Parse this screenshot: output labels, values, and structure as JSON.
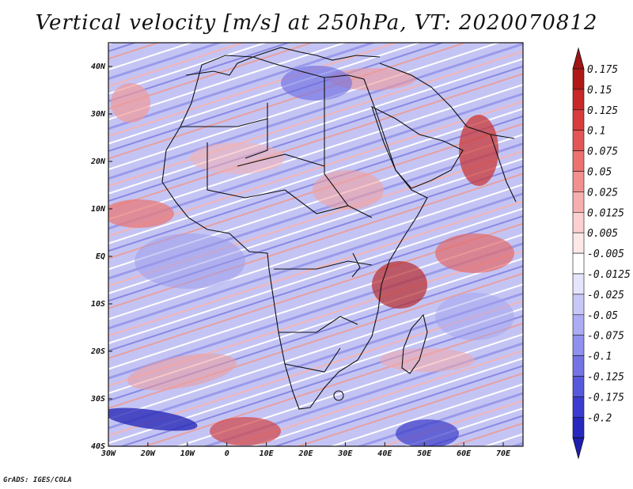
{
  "title": "Vertical velocity [m/s] at 250hPa, VT: 2020070812",
  "credit": "GrADS: IGES/COLA",
  "map": {
    "region": "Africa",
    "lon_range": [
      -30,
      75
    ],
    "lat_range": [
      -40,
      45
    ],
    "lat_ticks": [
      {
        "value": 40,
        "label": "40N"
      },
      {
        "value": 30,
        "label": "30N"
      },
      {
        "value": 20,
        "label": "20N"
      },
      {
        "value": 10,
        "label": "10N"
      },
      {
        "value": 0,
        "label": "EQ"
      },
      {
        "value": -10,
        "label": "10S"
      },
      {
        "value": -20,
        "label": "20S"
      },
      {
        "value": -30,
        "label": "30S"
      },
      {
        "value": -40,
        "label": "40S"
      }
    ],
    "lon_ticks": [
      {
        "value": -30,
        "label": "30W"
      },
      {
        "value": -20,
        "label": "20W"
      },
      {
        "value": -10,
        "label": "10W"
      },
      {
        "value": 0,
        "label": "0"
      },
      {
        "value": 10,
        "label": "10E"
      },
      {
        "value": 20,
        "label": "20E"
      },
      {
        "value": 30,
        "label": "30E"
      },
      {
        "value": 40,
        "label": "40E"
      },
      {
        "value": 50,
        "label": "50E"
      },
      {
        "value": 60,
        "label": "60E"
      },
      {
        "value": 70,
        "label": "70E"
      }
    ]
  },
  "colorbar": {
    "levels": [
      {
        "label": "0.175",
        "color": "#b01818"
      },
      {
        "label": "0.15",
        "color": "#c82828"
      },
      {
        "label": "0.125",
        "color": "#d83c3c"
      },
      {
        "label": "0.1",
        "color": "#e45656"
      },
      {
        "label": "0.075",
        "color": "#ec7272"
      },
      {
        "label": "0.05",
        "color": "#f29090"
      },
      {
        "label": "0.025",
        "color": "#f6aeae"
      },
      {
        "label": "0.0125",
        "color": "#fad0d0"
      },
      {
        "label": "0.005",
        "color": "#fde8e8"
      },
      {
        "label": "-0.005",
        "color": "#ffffff"
      },
      {
        "label": "-0.0125",
        "color": "#e4e4fc"
      },
      {
        "label": "-0.025",
        "color": "#c8c8f8"
      },
      {
        "label": "-0.05",
        "color": "#acacf4"
      },
      {
        "label": "-0.075",
        "color": "#9090ee"
      },
      {
        "label": "-0.1",
        "color": "#7474e6"
      },
      {
        "label": "-0.125",
        "color": "#5858dc"
      },
      {
        "label": "-0.175",
        "color": "#3c3cd0"
      },
      {
        "label": "-0.2",
        "color": "#2828c0"
      }
    ],
    "top_color": "#a01414",
    "bottom_color": "#1e1eb0"
  }
}
